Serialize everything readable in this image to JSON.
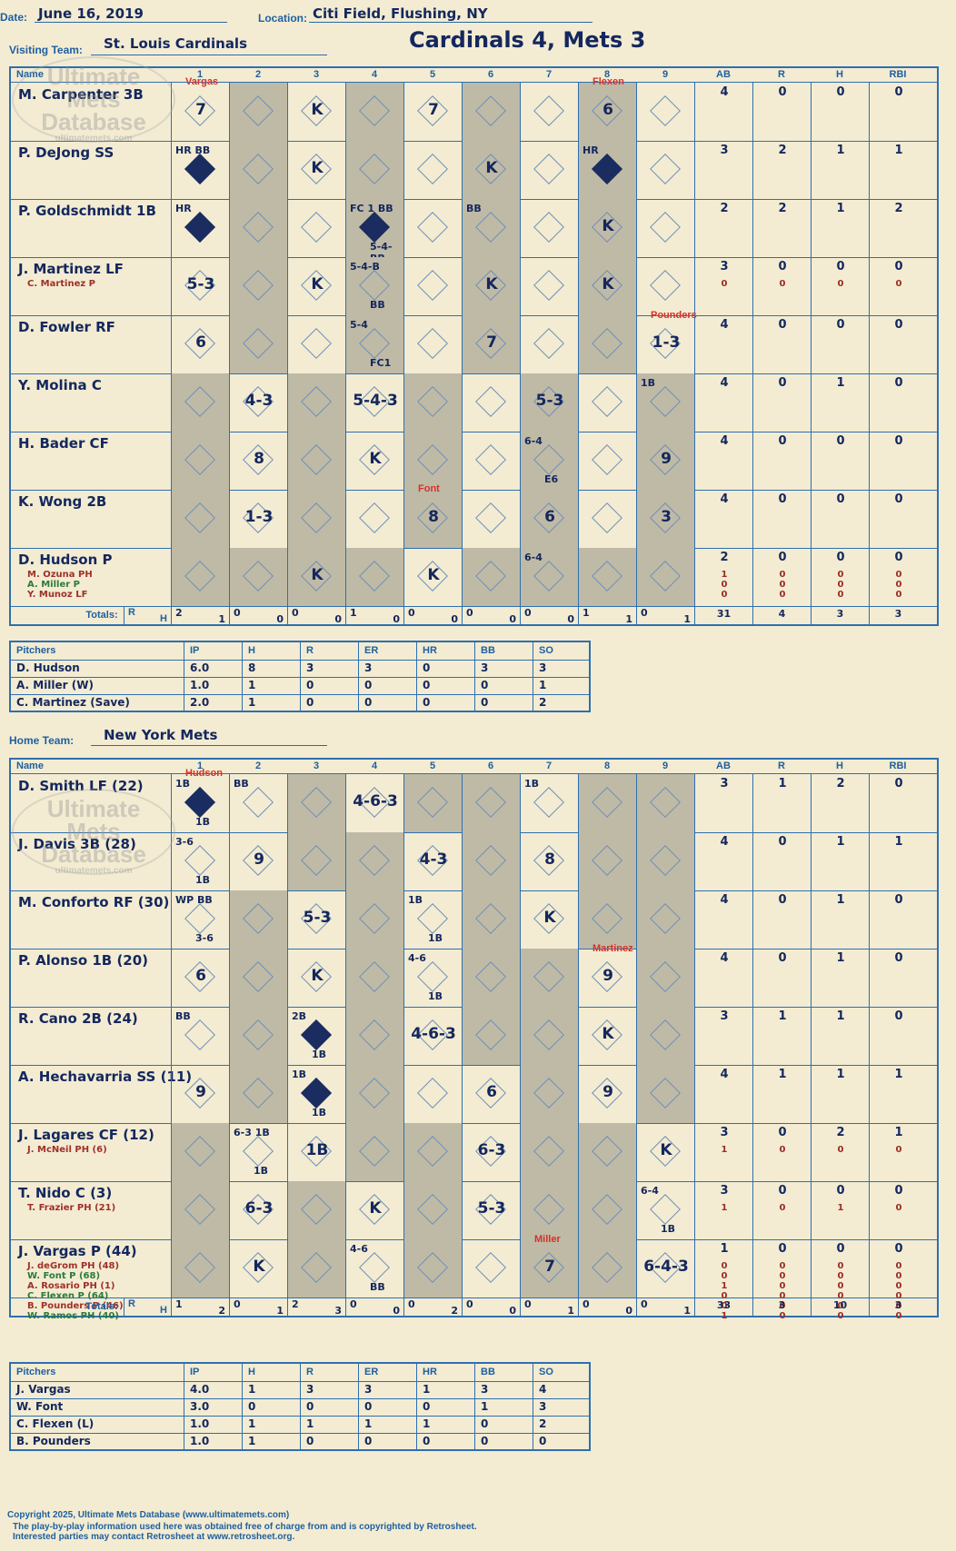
{
  "header": {
    "date_label": "Date:",
    "date": "June 16, 2019",
    "location_label": "Location:",
    "location": "Citi Field, Flushing, NY",
    "title": "Cardinals 4, Mets 3"
  },
  "watermark": {
    "line1": "Ultimate",
    "line2": "Mets",
    "line3": "Database",
    "url": "ultimatemets.com"
  },
  "columns": {
    "name": "Name",
    "innings": [
      "1",
      "2",
      "3",
      "4",
      "5",
      "6",
      "7",
      "8",
      "9"
    ],
    "stats": [
      "AB",
      "R",
      "H",
      "RBI"
    ],
    "totals": "Totals:",
    "r": "R",
    "h": "H"
  },
  "visiting": {
    "label": "Visiting Team:",
    "team": "St. Louis Cardinals",
    "batters": [
      {
        "name": "M. Carpenter 3B",
        "subs": [],
        "stats": [
          "4",
          "0",
          "0",
          "0"
        ]
      },
      {
        "name": "P. DeJong SS",
        "subs": [],
        "stats": [
          "3",
          "2",
          "1",
          "1"
        ]
      },
      {
        "name": "P. Goldschmidt 1B",
        "subs": [],
        "stats": [
          "2",
          "2",
          "1",
          "2"
        ]
      },
      {
        "name": "J. Martinez LF",
        "subs": [
          "C. Martinez P"
        ],
        "stats": [
          "3",
          "0",
          "0",
          "0"
        ],
        "sub_stats": [
          [
            "0",
            "0",
            "0",
            "0"
          ]
        ]
      },
      {
        "name": "D. Fowler RF",
        "subs": [],
        "stats": [
          "4",
          "0",
          "0",
          "0"
        ]
      },
      {
        "name": "Y. Molina C",
        "subs": [],
        "stats": [
          "4",
          "0",
          "1",
          "0"
        ]
      },
      {
        "name": "H. Bader CF",
        "subs": [],
        "stats": [
          "4",
          "0",
          "0",
          "0"
        ]
      },
      {
        "name": "K. Wong 2B",
        "subs": [],
        "stats": [
          "4",
          "0",
          "0",
          "0"
        ]
      },
      {
        "name": "D. Hudson P",
        "subs": [
          "M. Ozuna PH",
          "A. Miller P",
          "Y. Munoz LF"
        ],
        "stats": [
          "2",
          "0",
          "0",
          "0"
        ],
        "sub_stats": [
          [
            "1",
            "0",
            "0",
            "0"
          ],
          [
            "0",
            "0",
            "0",
            "0"
          ],
          [
            "0",
            "0",
            "0",
            "0"
          ]
        ]
      }
    ],
    "totals": [
      [
        "2",
        "1"
      ],
      [
        "0",
        "0"
      ],
      [
        "0",
        "0"
      ],
      [
        "1",
        "0"
      ],
      [
        "0",
        "0"
      ],
      [
        "0",
        "0"
      ],
      [
        "0",
        "0"
      ],
      [
        "1",
        "1"
      ],
      [
        "0",
        "1"
      ]
    ],
    "total_stats": [
      "31",
      "4",
      "3",
      "3"
    ],
    "pitchers_header": [
      "Pitchers",
      "IP",
      "H",
      "R",
      "ER",
      "HR",
      "BB",
      "SO"
    ],
    "pitchers": [
      [
        "D. Hudson",
        "6.0",
        "8",
        "3",
        "3",
        "0",
        "3",
        "3"
      ],
      [
        "A. Miller (W)",
        "1.0",
        "1",
        "0",
        "0",
        "0",
        "0",
        "1"
      ],
      [
        "C. Martinez (Save)",
        "2.0",
        "1",
        "0",
        "0",
        "0",
        "0",
        "2"
      ]
    ]
  },
  "home": {
    "label": "Home Team:",
    "team": "New York Mets",
    "batters": [
      {
        "name": "D. Smith LF (22)",
        "subs": [],
        "stats": [
          "3",
          "1",
          "2",
          "0"
        ]
      },
      {
        "name": "J. Davis 3B (28)",
        "subs": [],
        "stats": [
          "4",
          "0",
          "1",
          "1"
        ]
      },
      {
        "name": "M. Conforto RF (30)",
        "subs": [],
        "stats": [
          "4",
          "0",
          "1",
          "0"
        ]
      },
      {
        "name": "P. Alonso 1B (20)",
        "subs": [],
        "stats": [
          "4",
          "0",
          "1",
          "0"
        ]
      },
      {
        "name": "R. Cano 2B (24)",
        "subs": [],
        "stats": [
          "3",
          "1",
          "1",
          "0"
        ]
      },
      {
        "name": "A. Hechavarria SS (11)",
        "subs": [],
        "stats": [
          "4",
          "1",
          "1",
          "1"
        ]
      },
      {
        "name": "J. Lagares CF (12)",
        "subs": [
          "J. McNeil PH (6)"
        ],
        "stats": [
          "3",
          "0",
          "2",
          "1"
        ],
        "sub_stats": [
          [
            "1",
            "0",
            "0",
            "0"
          ]
        ]
      },
      {
        "name": "T. Nido C (3)",
        "subs": [
          "T. Frazier PH (21)"
        ],
        "stats": [
          "3",
          "0",
          "0",
          "0"
        ],
        "sub_stats": [
          [
            "1",
            "0",
            "1",
            "0"
          ]
        ]
      },
      {
        "name": "J. Vargas P (44)",
        "subs": [
          "J. deGrom PH (48)",
          "W. Font P (68)",
          "A. Rosario PH (1)",
          "C. Flexen P (64)",
          "B. Pounders P (46)",
          "W. Ramos PH (40)"
        ],
        "stats": [
          "1",
          "0",
          "0",
          "0"
        ],
        "sub_stats": [
          [
            "0",
            "0",
            "0",
            "0"
          ],
          [
            "0",
            "0",
            "0",
            "0"
          ],
          [
            "1",
            "0",
            "0",
            "0"
          ],
          [
            "0",
            "0",
            "0",
            "0"
          ],
          [
            "0",
            "0",
            "0",
            "0"
          ],
          [
            "1",
            "0",
            "0",
            "0"
          ]
        ]
      }
    ],
    "totals": [
      [
        "1",
        "2"
      ],
      [
        "0",
        "1"
      ],
      [
        "2",
        "3"
      ],
      [
        "0",
        "0"
      ],
      [
        "0",
        "2"
      ],
      [
        "0",
        "0"
      ],
      [
        "0",
        "1"
      ],
      [
        "0",
        "0"
      ],
      [
        "0",
        "1"
      ]
    ],
    "total_stats": [
      "33",
      "3",
      "10",
      "3"
    ],
    "pitchers_header": [
      "Pitchers",
      "IP",
      "H",
      "R",
      "ER",
      "HR",
      "BB",
      "SO"
    ],
    "pitchers": [
      [
        "J. Vargas",
        "4.0",
        "1",
        "3",
        "3",
        "1",
        "3",
        "4"
      ],
      [
        "W. Font",
        "3.0",
        "0",
        "0",
        "0",
        "0",
        "1",
        "3"
      ],
      [
        "C. Flexen (L)",
        "1.0",
        "1",
        "1",
        "1",
        "1",
        "0",
        "2"
      ],
      [
        "B. Pounders",
        "1.0",
        "1",
        "0",
        "0",
        "0",
        "0",
        "0"
      ]
    ]
  },
  "plays": {
    "visiting": [
      [
        [
          "7"
        ],
        [],
        [
          "K"
        ],
        [],
        [
          "7"
        ],
        [],
        [],
        [
          "6"
        ],
        []
      ],
      [
        [
          "",
          "HR BB"
        ],
        [],
        [
          "K"
        ],
        [],
        [],
        [
          "K"
        ],
        [],
        [
          "",
          "HR"
        ],
        []
      ],
      [
        [
          "",
          "HR"
        ],
        [],
        [],
        [
          "",
          "FC 1 BB",
          "5-4-BB"
        ],
        [],
        [
          "",
          "BB"
        ],
        [],
        [
          "K"
        ],
        []
      ],
      [
        [
          "5-3"
        ],
        [],
        [
          "K"
        ],
        [
          "",
          "5-4-B",
          "BB"
        ],
        [],
        [
          "K"
        ],
        [],
        [
          "K"
        ],
        []
      ],
      [
        [
          "6"
        ],
        [],
        [],
        [
          "",
          "5-4",
          "FC1"
        ],
        [],
        [
          "7"
        ],
        [],
        [],
        [
          "1-3"
        ]
      ],
      [
        [],
        [
          "4-3"
        ],
        [],
        [
          "5-4-3"
        ],
        [],
        [],
        [
          "5-3"
        ],
        [],
        [
          "",
          "1B"
        ]
      ],
      [
        [],
        [
          "8"
        ],
        [],
        [
          "K"
        ],
        [],
        [],
        [
          "",
          "6-4",
          "E6"
        ],
        [],
        [
          "9"
        ]
      ],
      [
        [],
        [
          "1-3"
        ],
        [],
        [],
        [
          "8"
        ],
        [],
        [
          "6"
        ],
        [],
        [
          "3"
        ]
      ],
      [
        [],
        [],
        [
          "K"
        ],
        [],
        [
          "K"
        ],
        [],
        [
          "",
          "6-4"
        ],
        [],
        []
      ]
    ],
    "home": [
      [
        [
          "",
          "1B",
          "1B"
        ],
        [
          "",
          "BB"
        ],
        [],
        [
          "4-6-3"
        ],
        [],
        [],
        [
          "",
          "1B"
        ],
        [],
        []
      ],
      [
        [
          "",
          "3-6",
          "1B"
        ],
        [
          "9"
        ],
        [],
        [],
        [
          "4-3"
        ],
        [],
        [
          "8"
        ],
        [],
        []
      ],
      [
        [
          "",
          "WP BB",
          "3-6"
        ],
        [],
        [
          "5-3"
        ],
        [],
        [
          "",
          "1B",
          "1B"
        ],
        [],
        [
          "K"
        ],
        [],
        []
      ],
      [
        [
          "6"
        ],
        [],
        [
          "K"
        ],
        [],
        [
          "",
          "4-6",
          "1B"
        ],
        [],
        [],
        [
          "9"
        ],
        []
      ],
      [
        [
          "",
          "BB"
        ],
        [],
        [
          "",
          "2B",
          "1B"
        ],
        [],
        [
          "4-6-3"
        ],
        [],
        [],
        [
          "K"
        ],
        []
      ],
      [
        [
          "9"
        ],
        [],
        [
          "",
          "1B",
          "1B"
        ],
        [],
        [],
        [
          "6"
        ],
        [],
        [
          "9"
        ],
        []
      ],
      [
        [],
        [
          "",
          "6-3 1B",
          "1B"
        ],
        [
          "1B"
        ],
        [],
        [],
        [
          "6-3"
        ],
        [],
        [],
        [
          "K"
        ]
      ],
      [
        [],
        [
          "6-3"
        ],
        [],
        [
          "K"
        ],
        [],
        [
          "5-3"
        ],
        [],
        [],
        [
          "",
          "6-4",
          "1B"
        ]
      ],
      [
        [],
        [
          "K"
        ],
        [],
        [
          "",
          "4-6",
          "BB"
        ],
        [],
        [],
        [
          "7"
        ],
        [],
        [
          "6-4-3"
        ]
      ]
    ],
    "pitching_changes": {
      "v_vargas": "Vargas",
      "v_flexen": "Flexen",
      "v_font": "Font",
      "v_pounders": "Pounders",
      "h_hudson": "Hudson",
      "h_martinez": "Martinez",
      "h_miller": "Miller"
    }
  },
  "footer": {
    "copyright": "Copyright 2025, Ultimate Mets Database (www.ultimatemets.com)",
    "line2": "The play-by-play information used here was obtained free of charge from and is copyrighted by Retrosheet.",
    "line3": "Interested parties may contact Retrosheet at www.retrosheet.org."
  },
  "colors": {
    "paper": "#f3ecd2",
    "line": "#2e6fb0",
    "ink": "#14275e",
    "shade": "#bfbaa6",
    "red": "#d8302a"
  }
}
